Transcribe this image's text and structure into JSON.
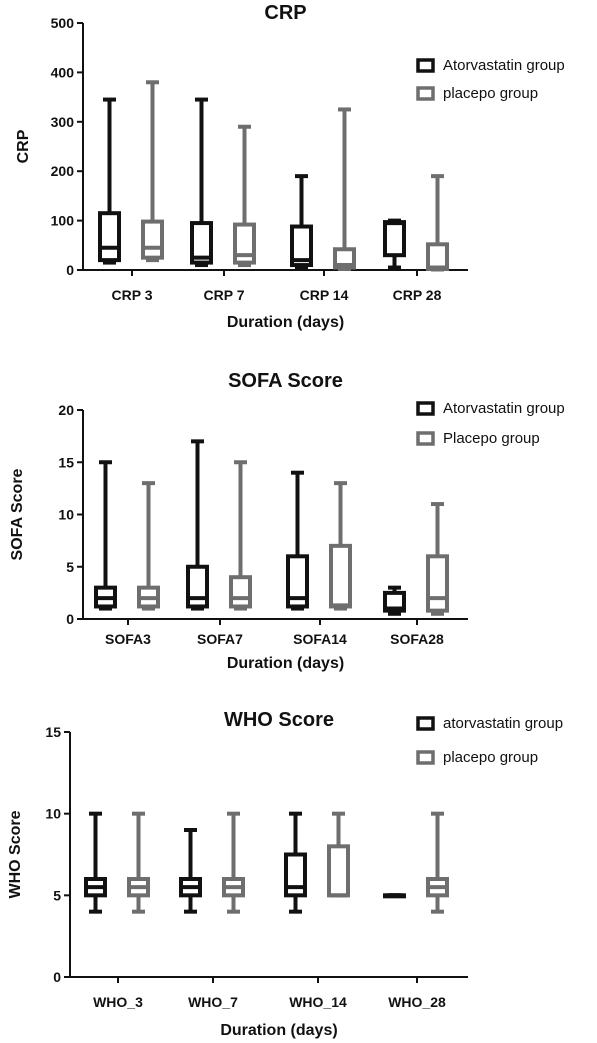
{
  "chart_data": [
    {
      "type": "box",
      "title": "CRP",
      "xlabel": "Duration (days)",
      "ylabel": "CRP",
      "ylim": [
        0,
        500
      ],
      "yticks": [
        0,
        100,
        200,
        300,
        400,
        500
      ],
      "categories": [
        "CRP 3",
        "CRP 7",
        "CRP 14",
        "CRP 28"
      ],
      "legend_position": "top-right",
      "series": [
        {
          "name": "Atorvastatin group",
          "color": "#111111",
          "boxes": [
            {
              "min": 15,
              "q1": 20,
              "median": 45,
              "q3": 115,
              "max": 345
            },
            {
              "min": 10,
              "q1": 15,
              "median": 25,
              "q3": 95,
              "max": 345
            },
            {
              "min": 5,
              "q1": 10,
              "median": 20,
              "q3": 88,
              "max": 190
            },
            {
              "min": 5,
              "q1": 30,
              "median": 95,
              "q3": 97,
              "max": 100
            }
          ]
        },
        {
          "name": "placepo group",
          "color": "#6e6e6e",
          "boxes": [
            {
              "min": 20,
              "q1": 25,
              "median": 45,
              "q3": 98,
              "max": 380
            },
            {
              "min": 10,
              "q1": 15,
              "median": 30,
              "q3": 92,
              "max": 290
            },
            {
              "min": 2,
              "q1": 5,
              "median": 10,
              "q3": 42,
              "max": 325
            },
            {
              "min": 1,
              "q1": 2,
              "median": 5,
              "q3": 52,
              "max": 190
            }
          ]
        }
      ]
    },
    {
      "type": "box",
      "title": "SOFA Score",
      "xlabel": "Duration (days)",
      "ylabel": "SOFA Score",
      "ylim": [
        0,
        20
      ],
      "yticks": [
        0,
        5,
        10,
        15,
        20
      ],
      "categories": [
        "SOFA3",
        "SOFA7",
        "SOFA14",
        "SOFA28"
      ],
      "legend_position": "top-right",
      "series": [
        {
          "name": "Atorvastatin group",
          "color": "#111111",
          "boxes": [
            {
              "min": 1,
              "q1": 1.2,
              "median": 2,
              "q3": 3,
              "max": 15
            },
            {
              "min": 1,
              "q1": 1.2,
              "median": 2,
              "q3": 5,
              "max": 17
            },
            {
              "min": 1,
              "q1": 1.2,
              "median": 2,
              "q3": 6,
              "max": 14
            },
            {
              "min": 0.5,
              "q1": 0.8,
              "median": 1,
              "q3": 2.5,
              "max": 3
            }
          ]
        },
        {
          "name": "Placepo group",
          "color": "#6e6e6e",
          "boxes": [
            {
              "min": 1,
              "q1": 1.2,
              "median": 2,
              "q3": 3,
              "max": 13
            },
            {
              "min": 1,
              "q1": 1.2,
              "median": 2,
              "q3": 4,
              "max": 15
            },
            {
              "min": 1,
              "q1": 1.2,
              "median": 1.3,
              "q3": 7,
              "max": 13
            },
            {
              "min": 0.5,
              "q1": 0.8,
              "median": 2,
              "q3": 6,
              "max": 11
            }
          ]
        }
      ]
    },
    {
      "type": "box",
      "title": "WHO Score",
      "xlabel": "Duration (days)",
      "ylabel": "WHO Score",
      "ylim": [
        0,
        15
      ],
      "yticks": [
        0,
        5,
        10,
        15
      ],
      "categories": [
        "WHO_3",
        "WHO_7",
        "WHO_14",
        "WHO_28"
      ],
      "legend_position": "top-right",
      "series": [
        {
          "name": "atorvastatin group",
          "color": "#111111",
          "boxes": [
            {
              "min": 4,
              "q1": 5,
              "median": 5.5,
              "q3": 6,
              "max": 10
            },
            {
              "min": 4,
              "q1": 5,
              "median": 5.5,
              "q3": 6,
              "max": 9
            },
            {
              "min": 4,
              "q1": 5,
              "median": 5.5,
              "q3": 7.5,
              "max": 10
            },
            {
              "min": 5,
              "q1": 5,
              "median": 5,
              "q3": 5,
              "max": 5
            }
          ]
        },
        {
          "name": "placepo group",
          "color": "#6e6e6e",
          "boxes": [
            {
              "min": 4,
              "q1": 5,
              "median": 5.5,
              "q3": 6,
              "max": 10
            },
            {
              "min": 4,
              "q1": 5,
              "median": 5.5,
              "q3": 6,
              "max": 10
            },
            {
              "min": 5,
              "q1": 5,
              "median": 5,
              "q3": 8,
              "max": 10
            },
            {
              "min": 4,
              "q1": 5,
              "median": 5.5,
              "q3": 6,
              "max": 10
            }
          ]
        }
      ]
    }
  ]
}
